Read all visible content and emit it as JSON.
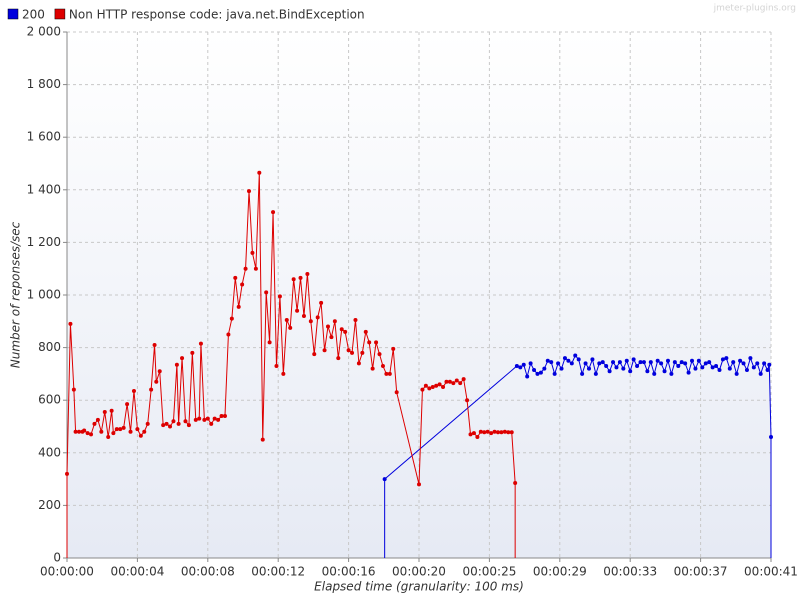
{
  "chart_data": {
    "type": "line",
    "watermark": "jmeter-plugins.org",
    "y_label": "Number of reponses/sec",
    "x_label": "Elapsed time (granularity: 100 ms)",
    "xlim": [
      0,
      41
    ],
    "xticks": [
      {
        "value": 0,
        "label": "00:00:00"
      },
      {
        "value": 4.1,
        "label": "00:00:04"
      },
      {
        "value": 8.2,
        "label": "00:00:08"
      },
      {
        "value": 12.3,
        "label": "00:00:12"
      },
      {
        "value": 16.4,
        "label": "00:00:16"
      },
      {
        "value": 20.5,
        "label": "00:00:20"
      },
      {
        "value": 24.6,
        "label": "00:00:25"
      },
      {
        "value": 28.7,
        "label": "00:00:29"
      },
      {
        "value": 32.8,
        "label": "00:00:33"
      },
      {
        "value": 36.9,
        "label": "00:00:37"
      },
      {
        "value": 41,
        "label": "00:00:41"
      }
    ],
    "ylim": [
      0,
      2000
    ],
    "yticks": [
      0,
      200,
      400,
      600,
      800,
      {
        "value": 1000,
        "label": "1 000"
      },
      {
        "value": 1200,
        "label": "1 200"
      },
      {
        "value": 1400,
        "label": "1 400"
      },
      {
        "value": 1600,
        "label": "1 600"
      },
      {
        "value": 1800,
        "label": "1 800"
      },
      {
        "value": 2000,
        "label": "2 000"
      }
    ],
    "grid": true,
    "series": [
      {
        "name": "200",
        "color": "#0000dd",
        "x": [
          18.5,
          18.5,
          26.2,
          26.4,
          26.6,
          26.8,
          27.0,
          27.2,
          27.4,
          27.6,
          27.8,
          28.0,
          28.2,
          28.4,
          28.6,
          28.8,
          29.0,
          29.2,
          29.4,
          29.6,
          29.8,
          30.0,
          30.2,
          30.4,
          30.6,
          30.8,
          31.0,
          31.2,
          31.4,
          31.6,
          31.8,
          32.0,
          32.2,
          32.4,
          32.6,
          32.8,
          33.0,
          33.2,
          33.4,
          33.6,
          33.8,
          34.0,
          34.2,
          34.4,
          34.6,
          34.8,
          35.0,
          35.2,
          35.4,
          35.6,
          35.8,
          36.0,
          36.2,
          36.4,
          36.6,
          36.8,
          37.0,
          37.2,
          37.4,
          37.6,
          37.8,
          38.0,
          38.2,
          38.4,
          38.6,
          38.8,
          39.0,
          39.2,
          39.4,
          39.6,
          39.8,
          40.0,
          40.2,
          40.4,
          40.6,
          40.8,
          40.9,
          41.0,
          41.0
        ],
        "values": [
          0,
          300,
          730,
          725,
          735,
          690,
          740,
          715,
          700,
          705,
          720,
          750,
          745,
          700,
          740,
          720,
          760,
          750,
          740,
          770,
          755,
          700,
          740,
          720,
          755,
          700,
          740,
          745,
          730,
          710,
          745,
          725,
          745,
          720,
          750,
          710,
          755,
          730,
          745,
          745,
          710,
          745,
          700,
          750,
          740,
          710,
          750,
          700,
          745,
          730,
          745,
          740,
          705,
          750,
          720,
          750,
          725,
          740,
          745,
          725,
          730,
          715,
          755,
          760,
          720,
          745,
          700,
          750,
          740,
          715,
          760,
          725,
          740,
          700,
          740,
          715,
          735,
          460,
          0
        ]
      },
      {
        "name": "Non HTTP response code: java.net.BindException",
        "color": "#dd0000",
        "x": [
          0,
          0,
          0.2,
          0.4,
          0.5,
          0.7,
          0.9,
          1.0,
          1.2,
          1.4,
          1.6,
          1.8,
          2.0,
          2.2,
          2.4,
          2.6,
          2.7,
          2.9,
          3.1,
          3.3,
          3.5,
          3.7,
          3.9,
          4.1,
          4.3,
          4.5,
          4.7,
          4.9,
          5.1,
          5.2,
          5.4,
          5.6,
          5.8,
          6.0,
          6.2,
          6.4,
          6.5,
          6.7,
          6.9,
          7.1,
          7.3,
          7.5,
          7.7,
          7.8,
          8.0,
          8.2,
          8.4,
          8.6,
          8.8,
          9.0,
          9.2,
          9.4,
          9.6,
          9.8,
          10.0,
          10.2,
          10.4,
          10.6,
          10.8,
          11.0,
          11.2,
          11.4,
          11.6,
          11.8,
          12.0,
          12.2,
          12.4,
          12.6,
          12.8,
          13.0,
          13.2,
          13.4,
          13.6,
          13.8,
          14.0,
          14.2,
          14.4,
          14.6,
          14.8,
          15.0,
          15.2,
          15.4,
          15.6,
          15.8,
          16.0,
          16.2,
          16.4,
          16.6,
          16.8,
          17.0,
          17.2,
          17.4,
          17.6,
          17.8,
          18.0,
          18.2,
          18.4,
          18.6,
          18.8,
          19.0,
          19.2,
          20.5,
          20.7,
          20.9,
          21.1,
          21.3,
          21.5,
          21.7,
          21.9,
          22.1,
          22.3,
          22.5,
          22.7,
          22.9,
          23.1,
          23.3,
          23.5,
          23.7,
          23.9,
          24.1,
          24.3,
          24.5,
          24.7,
          24.9,
          25.1,
          25.3,
          25.5,
          25.7,
          25.9,
          26.1,
          26.1
        ],
        "values": [
          0,
          320,
          890,
          640,
          480,
          480,
          480,
          485,
          475,
          470,
          510,
          525,
          480,
          555,
          460,
          560,
          475,
          490,
          490,
          495,
          585,
          480,
          635,
          490,
          465,
          480,
          510,
          640,
          810,
          670,
          710,
          505,
          510,
          500,
          520,
          735,
          510,
          760,
          520,
          505,
          780,
          525,
          530,
          815,
          525,
          530,
          510,
          530,
          525,
          540,
          540,
          850,
          910,
          1065,
          955,
          1040,
          1100,
          1395,
          1160,
          1100,
          1465,
          450,
          1010,
          820,
          1315,
          730,
          995,
          700,
          905,
          875,
          1060,
          940,
          1065,
          920,
          1080,
          900,
          775,
          915,
          970,
          790,
          880,
          840,
          900,
          760,
          870,
          860,
          790,
          780,
          905,
          740,
          780,
          860,
          820,
          720,
          820,
          775,
          730,
          700,
          700,
          795,
          630,
          280,
          640,
          655,
          645,
          650,
          655,
          660,
          650,
          670,
          670,
          665,
          675,
          665,
          680,
          600,
          470,
          475,
          460,
          480,
          478,
          480,
          475,
          480,
          478,
          478,
          480,
          478,
          478,
          285,
          0
        ]
      }
    ]
  }
}
